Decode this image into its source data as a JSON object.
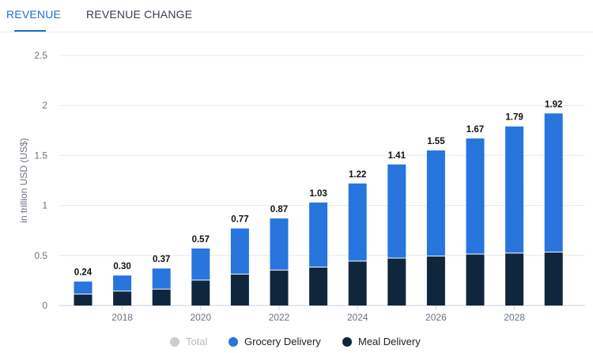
{
  "tabs": [
    {
      "label": "REVENUE",
      "active": true
    },
    {
      "label": "REVENUE CHANGE",
      "active": false
    }
  ],
  "colors": {
    "accent": "#1f6fd0",
    "grocery": "#2775dd",
    "meal": "#10263d",
    "total": "#cccccc"
  },
  "chart_data": {
    "type": "bar",
    "stacked": true,
    "ylabel": "in trillion USD (US$)",
    "xlabel": "",
    "ylim": [
      0,
      2.5
    ],
    "yticks": [
      "0",
      "0.5",
      "1",
      "1.5",
      "2",
      "2.5"
    ],
    "grid": true,
    "legend_position": "bottom",
    "categories": [
      "2017",
      "2018",
      "2019",
      "2020",
      "2021",
      "2022",
      "2023",
      "2024",
      "2025",
      "2026",
      "2027",
      "2028",
      "2029"
    ],
    "xticks": [
      "2018",
      "2020",
      "2022",
      "2024",
      "2026",
      "2028"
    ],
    "totals": [
      "0.24",
      "0.30",
      "0.37",
      "0.57",
      "0.77",
      "0.87",
      "1.03",
      "1.22",
      "1.41",
      "1.55",
      "1.67",
      "1.79",
      "1.92"
    ],
    "series": [
      {
        "name": "Meal Delivery",
        "values": [
          0.11,
          0.14,
          0.16,
          0.25,
          0.31,
          0.35,
          0.38,
          0.44,
          0.47,
          0.49,
          0.51,
          0.52,
          0.53
        ]
      },
      {
        "name": "Grocery Delivery",
        "values": [
          0.13,
          0.16,
          0.21,
          0.32,
          0.46,
          0.52,
          0.65,
          0.78,
          0.94,
          1.06,
          1.16,
          1.27,
          1.39
        ]
      }
    ],
    "legend": [
      {
        "name": "Total",
        "disabled": true
      },
      {
        "name": "Grocery Delivery",
        "disabled": false
      },
      {
        "name": "Meal Delivery",
        "disabled": false
      }
    ]
  }
}
